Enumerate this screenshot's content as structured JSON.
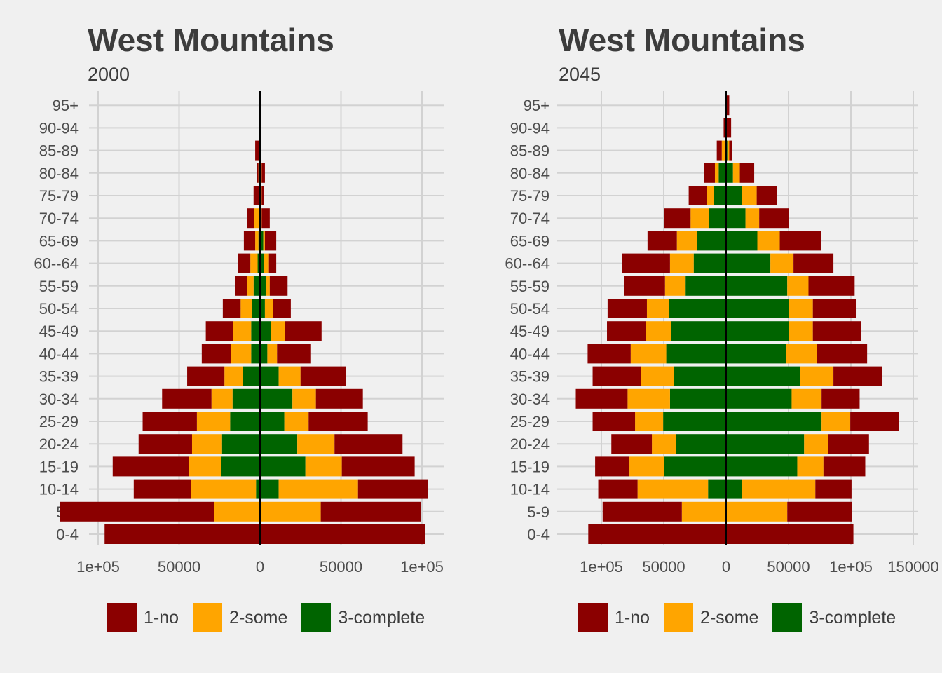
{
  "colors": {
    "no": "#8b0000",
    "some": "#ffa500",
    "complete": "#006400",
    "grid": "#d2d2d2",
    "axis_text": "#4d4d4d",
    "zero_line": "#000000"
  },
  "legend": [
    {
      "key": "no",
      "label": "1-no"
    },
    {
      "key": "some",
      "label": "2-some"
    },
    {
      "key": "complete",
      "label": "3-complete"
    }
  ],
  "chart_data": [
    {
      "type": "bar",
      "orientation": "horizontal-population-pyramid",
      "title": "West Mountains",
      "subtitle": "2000",
      "categories": [
        "0-4",
        "5-9",
        "10-14",
        "15-19",
        "20-24",
        "25-29",
        "30-34",
        "35-39",
        "40-44",
        "45-49",
        "50-54",
        "55-59",
        "60--64",
        "65-69",
        "70-74",
        "75-79",
        "80-84",
        "85-89",
        "90-94",
        "95+"
      ],
      "xlim": [
        -100000,
        100000
      ],
      "xticks": [
        -100000,
        -50000,
        0,
        50000,
        100000
      ],
      "xtick_labels": [
        "1e+05",
        "50000",
        "0",
        "50000",
        "1e+05"
      ],
      "grid": true,
      "legend_position": "bottom",
      "stack_order": [
        "complete",
        "some",
        "no"
      ],
      "series": [
        {
          "key": "no",
          "name": "1-no",
          "left": [
            96000,
            95000,
            35500,
            47000,
            33000,
            33500,
            30500,
            23000,
            18000,
            17000,
            11000,
            7500,
            7500,
            7000,
            4500,
            3500,
            1000,
            2500,
            0,
            0
          ],
          "right": [
            102000,
            62000,
            43000,
            45000,
            42000,
            36500,
            29000,
            28000,
            21000,
            22500,
            11000,
            11000,
            4500,
            7000,
            5000,
            1500,
            2000,
            0,
            0,
            0
          ]
        },
        {
          "key": "some",
          "name": "2-some",
          "left": [
            0,
            28500,
            40000,
            20000,
            18500,
            20500,
            13000,
            11500,
            12500,
            11000,
            7000,
            4000,
            4500,
            2000,
            3500,
            500,
            1000,
            500,
            0,
            0
          ],
          "right": [
            0,
            37500,
            49000,
            22500,
            23000,
            15000,
            14500,
            13500,
            6000,
            9000,
            5000,
            2500,
            3000,
            1000,
            1000,
            1000,
            1000,
            0,
            0,
            0
          ]
        },
        {
          "key": "complete",
          "name": "3-complete",
          "left": [
            0,
            0,
            2500,
            24000,
            23500,
            18500,
            17000,
            10500,
            5500,
            5500,
            5000,
            4000,
            1500,
            1000,
            0,
            0,
            0,
            0,
            0,
            0
          ],
          "right": [
            0,
            0,
            11500,
            28000,
            23000,
            15000,
            20000,
            11500,
            4500,
            6500,
            3000,
            3500,
            2500,
            2000,
            0,
            0,
            0,
            0,
            0,
            0
          ]
        }
      ]
    },
    {
      "type": "bar",
      "orientation": "horizontal-population-pyramid",
      "title": "West Mountains",
      "subtitle": "2045",
      "categories": [
        "0-4",
        "5-9",
        "10-14",
        "15-19",
        "20-24",
        "25-29",
        "30-34",
        "35-39",
        "40-44",
        "45-49",
        "50-54",
        "55-59",
        "60--64",
        "65-69",
        "70-74",
        "75-79",
        "80-84",
        "85-89",
        "90-94",
        "95+"
      ],
      "xlim": [
        -100000,
        150000
      ],
      "xticks": [
        -100000,
        -50000,
        0,
        50000,
        100000,
        150000
      ],
      "xtick_labels": [
        "1e+05",
        "50000",
        "0",
        "50000",
        "1e+05",
        "150000"
      ],
      "grid": true,
      "legend_position": "bottom",
      "stack_order": [
        "complete",
        "some",
        "no"
      ],
      "series": [
        {
          "key": "no",
          "name": "1-no",
          "left": [
            110500,
            63500,
            31500,
            27500,
            32500,
            34000,
            41500,
            39000,
            34500,
            31000,
            31500,
            32500,
            38500,
            23500,
            21000,
            14500,
            8500,
            4000,
            1000,
            500
          ],
          "right": [
            102000,
            52000,
            29000,
            33500,
            33000,
            39000,
            30500,
            39000,
            40500,
            38500,
            35000,
            37000,
            32000,
            33000,
            23500,
            16000,
            11500,
            2500,
            4000,
            2500
          ]
        },
        {
          "key": "some",
          "name": "2-some",
          "left": [
            0,
            35500,
            56500,
            27500,
            19500,
            22500,
            34000,
            26000,
            28500,
            20500,
            17500,
            16500,
            19000,
            16000,
            15000,
            5500,
            3000,
            2500,
            1000,
            0
          ],
          "right": [
            0,
            49000,
            59000,
            21000,
            19000,
            23000,
            24000,
            26500,
            24500,
            19500,
            19500,
            17000,
            18500,
            18000,
            11000,
            12000,
            5500,
            1500,
            0,
            0
          ]
        },
        {
          "key": "complete",
          "name": "3-complete",
          "left": [
            0,
            0,
            14500,
            50000,
            40000,
            50500,
            45000,
            42000,
            48000,
            44000,
            46000,
            32500,
            26000,
            23500,
            13500,
            10000,
            6000,
            1000,
            0,
            0
          ],
          "right": [
            0,
            0,
            12500,
            57000,
            62500,
            76500,
            52500,
            59500,
            48000,
            50000,
            50000,
            49000,
            35500,
            25000,
            15500,
            12500,
            5500,
            1000,
            0,
            0
          ]
        }
      ]
    }
  ]
}
